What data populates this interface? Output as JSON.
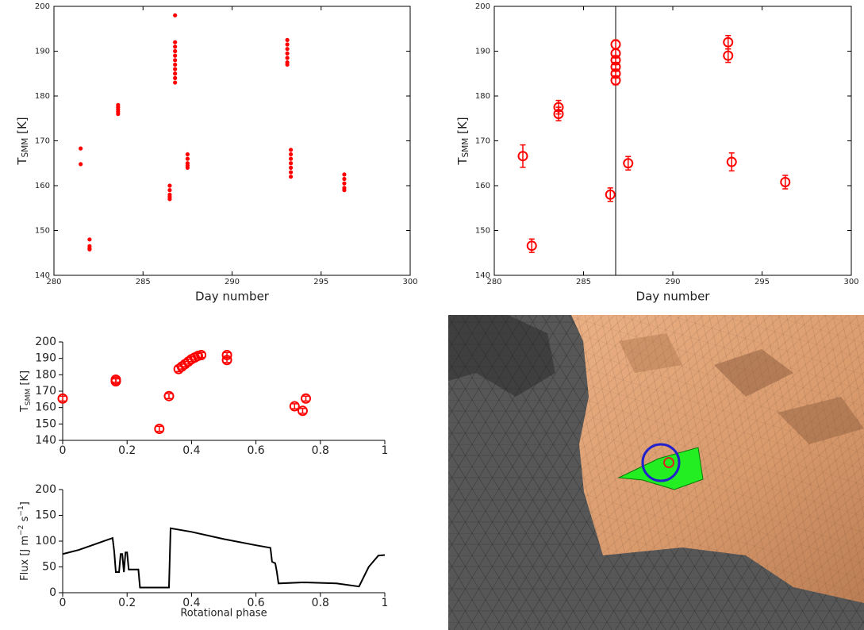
{
  "chart_data": [
    {
      "type": "scatter",
      "color": "#ff0000",
      "xlim": [
        280,
        300
      ],
      "ylim": [
        140,
        200
      ],
      "xticks": [
        280,
        285,
        290,
        295,
        300
      ],
      "yticks": [
        140,
        150,
        160,
        170,
        180,
        190,
        200
      ],
      "frame": true,
      "xlabel": "Day number",
      "ylabel_parts": [
        {
          "text": "T"
        },
        {
          "text": "SMM",
          "shift": "sub"
        },
        {
          "text": " [K]"
        }
      ],
      "x": [
        281.5,
        281.5,
        282,
        282,
        282,
        282,
        283.6,
        283.6,
        283.6,
        283.6,
        283.6,
        286.5,
        286.5,
        286.5,
        286.5,
        286.5,
        286.8,
        286.8,
        286.8,
        286.8,
        286.8,
        286.8,
        286.8,
        286.8,
        286.8,
        286.8,
        286.8,
        287.5,
        287.5,
        287.5,
        287.5,
        287.5,
        293.1,
        293.1,
        293.1,
        293.1,
        293.1,
        293.1,
        293.1,
        293.3,
        293.3,
        293.3,
        293.3,
        293.3,
        293.3,
        293.3,
        296.3,
        296.3,
        296.3,
        296.3,
        296.3
      ],
      "values": [
        168.3,
        164.8,
        148,
        146.5,
        146,
        145.8,
        178,
        177.5,
        177,
        176.5,
        176,
        160,
        159,
        158,
        157.5,
        157,
        198,
        183,
        184,
        185,
        186,
        187,
        188,
        189,
        190,
        191,
        192,
        167,
        166,
        165,
        164.5,
        164,
        192.5,
        191.5,
        190.5,
        189.5,
        188.5,
        187.5,
        187,
        168,
        167,
        166,
        165,
        164,
        163,
        162,
        162.5,
        161.5,
        160.5,
        159.5,
        159
      ]
    },
    {
      "type": "errorbar",
      "color": "#ff0000",
      "xlim": [
        280,
        300
      ],
      "ylim": [
        140,
        200
      ],
      "xticks": [
        280,
        285,
        290,
        295,
        300
      ],
      "yticks": [
        140,
        150,
        160,
        170,
        180,
        190,
        200
      ],
      "frame": true,
      "xlabel": "Day number",
      "ylabel_parts": [
        {
          "text": "T"
        },
        {
          "text": "SMM",
          "shift": "sub"
        },
        {
          "text": " [K]"
        }
      ],
      "vline": 286.8,
      "x": [
        281.6,
        282.1,
        283.6,
        283.6,
        286.5,
        286.8,
        286.8,
        286.8,
        286.8,
        286.8,
        286.8,
        287.5,
        293.1,
        293.1,
        293.3,
        296.3
      ],
      "values": [
        166.6,
        146.6,
        177.5,
        176,
        158,
        183.5,
        185,
        186.5,
        188,
        189.5,
        191.5,
        165,
        192,
        189,
        165.3,
        160.8
      ],
      "errors": [
        2.5,
        1.5,
        1.5,
        1.5,
        1.5,
        1,
        1,
        1,
        1,
        1,
        1,
        1.5,
        1.5,
        1.5,
        2,
        1.5
      ]
    },
    {
      "type": "errorbar",
      "color": "#ff0000",
      "xlim": [
        0,
        1
      ],
      "ylim": [
        140,
        200
      ],
      "xticks": [
        0,
        0.2,
        0.4,
        0.6,
        0.8,
        1
      ],
      "yticks": [
        140,
        150,
        160,
        170,
        180,
        190,
        200
      ],
      "frame": false,
      "ylabel_parts": [
        {
          "text": "T"
        },
        {
          "text": "SMM",
          "shift": "sub"
        },
        {
          "text": " [K]"
        }
      ],
      "x": [
        0,
        0.165,
        0.165,
        0.3,
        0.33,
        0.36,
        0.37,
        0.38,
        0.39,
        0.4,
        0.41,
        0.42,
        0.43,
        0.51,
        0.51,
        0.72,
        0.745,
        0.755
      ],
      "values": [
        165.5,
        177,
        176,
        147,
        167,
        183.5,
        185,
        186.5,
        188,
        189.5,
        190.5,
        191.5,
        192,
        192,
        189,
        160.8,
        158,
        165.5
      ],
      "errors": [
        1.5,
        1.5,
        1.5,
        1.5,
        1.5,
        1.5,
        1.5,
        1.5,
        1.5,
        1.5,
        1.5,
        1.5,
        1.5,
        1.5,
        1.5,
        1.5,
        1.5,
        1.5
      ]
    },
    {
      "type": "line",
      "color": "#000000",
      "xlim": [
        0,
        1
      ],
      "ylim": [
        0,
        200
      ],
      "xticks": [
        0,
        0.2,
        0.4,
        0.6,
        0.8,
        1
      ],
      "yticks": [
        0,
        50,
        100,
        150,
        200
      ],
      "frame": false,
      "xlabel": "Rotational phase",
      "ylabel_parts": [
        {
          "text": "Flux [J m"
        },
        {
          "text": "−2",
          "shift": "super"
        },
        {
          "text": " s"
        },
        {
          "text": "−1",
          "shift": "super"
        },
        {
          "text": "]"
        }
      ],
      "x": [
        0,
        0.05,
        0.1,
        0.155,
        0.16,
        0.165,
        0.175,
        0.18,
        0.185,
        0.19,
        0.195,
        0.2,
        0.205,
        0.235,
        0.24,
        0.33,
        0.335,
        0.4,
        0.5,
        0.6,
        0.645,
        0.65,
        0.66,
        0.665,
        0.67,
        0.75,
        0.85,
        0.92,
        0.95,
        0.98,
        1
      ],
      "values": [
        75,
        83,
        94,
        106,
        80,
        40,
        40,
        75,
        75,
        40,
        78,
        78,
        45,
        45,
        10,
        10,
        125,
        118,
        104,
        92,
        87,
        60,
        57,
        40,
        18,
        20,
        18,
        12,
        50,
        72,
        73
      ]
    }
  ]
}
